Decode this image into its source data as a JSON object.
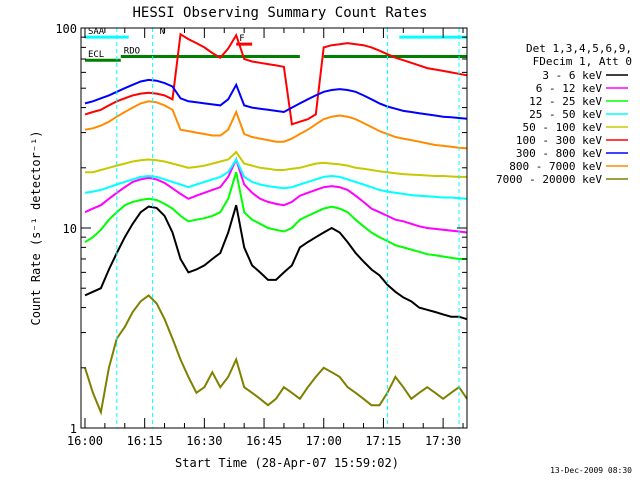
{
  "chart_data": {
    "type": "line",
    "title": "HESSI Observing Summary Count Rates",
    "xlabel": "Start Time (28-Apr-07 15:59:02)",
    "ylabel": "Count Rate (s⁻¹ detector⁻¹)",
    "ylog": true,
    "ylim": [
      1,
      100
    ],
    "xlim_min": [
      0,
      97
    ],
    "xticks": [
      {
        "min": 1,
        "label": "16:00"
      },
      {
        "min": 16,
        "label": "16:15"
      },
      {
        "min": 31,
        "label": "16:30"
      },
      {
        "min": 46,
        "label": "16:45"
      },
      {
        "min": 61,
        "label": "17:00"
      },
      {
        "min": 76,
        "label": "17:15"
      },
      {
        "min": 91,
        "label": "17:30"
      }
    ],
    "yticks": [
      {
        "value": 1,
        "label": "1"
      },
      {
        "value": 10,
        "label": "10"
      },
      {
        "value": 100,
        "label": "100"
      }
    ],
    "legend_position": "right",
    "legend_header": [
      "Det 1,3,4,5,6,9,",
      "FDecim 1, Att 0"
    ],
    "series": [
      {
        "name": "3 - 6 keV",
        "color": "#000000",
        "x": [
          1,
          3,
          5,
          7,
          9,
          11,
          13,
          15,
          17,
          19,
          21,
          23,
          25,
          27,
          29,
          31,
          33,
          35,
          37,
          39,
          41,
          43,
          45,
          47,
          49,
          51,
          53,
          55,
          57,
          59,
          61,
          63,
          65,
          67,
          69,
          71,
          73,
          75,
          77,
          79,
          81,
          83,
          85,
          87,
          89,
          91,
          93,
          95,
          97
        ],
        "y": [
          4.6,
          4.8,
          5.0,
          6.2,
          7.5,
          9.0,
          10.5,
          12.0,
          12.8,
          12.6,
          11.5,
          9.5,
          7.0,
          6.0,
          6.2,
          6.5,
          7.0,
          7.5,
          9.5,
          13,
          8.0,
          6.5,
          6.0,
          5.5,
          5.5,
          6.0,
          6.5,
          8.0,
          8.5,
          9.0,
          9.5,
          10.0,
          9.5,
          8.5,
          7.5,
          6.8,
          6.2,
          5.8,
          5.2,
          4.8,
          4.5,
          4.3,
          4.0,
          3.9,
          3.8,
          3.7,
          3.6,
          3.6,
          3.5
        ]
      },
      {
        "name": "6 - 12 keV",
        "color": "#ff00ff",
        "x": [
          1,
          3,
          5,
          7,
          9,
          11,
          13,
          15,
          17,
          19,
          21,
          23,
          25,
          27,
          29,
          31,
          33,
          35,
          37,
          39,
          41,
          43,
          45,
          47,
          49,
          51,
          53,
          55,
          57,
          59,
          61,
          63,
          65,
          67,
          69,
          71,
          73,
          75,
          77,
          79,
          81,
          83,
          85,
          87,
          89,
          91,
          93,
          95,
          97
        ],
        "y": [
          12.0,
          12.5,
          13.0,
          14.0,
          15.0,
          16.0,
          17.0,
          17.5,
          17.8,
          17.5,
          16.8,
          15.8,
          14.8,
          14.0,
          14.5,
          15.0,
          15.5,
          16.0,
          18.0,
          22,
          16.5,
          15.0,
          14.0,
          13.5,
          13.2,
          13.0,
          13.5,
          14.5,
          15.0,
          15.5,
          16.0,
          16.2,
          16.0,
          15.5,
          14.5,
          13.5,
          12.5,
          12.0,
          11.5,
          11.0,
          10.8,
          10.5,
          10.2,
          10.0,
          9.9,
          9.8,
          9.7,
          9.6,
          9.5
        ]
      },
      {
        "name": "12 - 25 keV",
        "color": "#00ff00",
        "x": [
          1,
          3,
          5,
          7,
          9,
          11,
          13,
          15,
          17,
          19,
          21,
          23,
          25,
          27,
          29,
          31,
          33,
          35,
          37,
          39,
          41,
          43,
          45,
          47,
          49,
          51,
          53,
          55,
          57,
          59,
          61,
          63,
          65,
          67,
          69,
          71,
          73,
          75,
          77,
          79,
          81,
          83,
          85,
          87,
          89,
          91,
          93,
          95,
          97
        ],
        "y": [
          8.5,
          9.0,
          9.8,
          11.0,
          12.0,
          13.0,
          13.5,
          13.8,
          14.0,
          13.8,
          13.2,
          12.5,
          11.5,
          10.8,
          11.0,
          11.2,
          11.5,
          12.0,
          14.0,
          19,
          12.0,
          11.0,
          10.5,
          10.0,
          9.8,
          9.6,
          10.0,
          11.0,
          11.5,
          12.0,
          12.5,
          12.8,
          12.5,
          12.0,
          11.0,
          10.2,
          9.5,
          9.0,
          8.6,
          8.2,
          8.0,
          7.8,
          7.6,
          7.4,
          7.3,
          7.2,
          7.1,
          7.0,
          7.0
        ]
      },
      {
        "name": "25 - 50 keV",
        "color": "#00ffff",
        "x": [
          1,
          3,
          5,
          7,
          9,
          11,
          13,
          15,
          17,
          19,
          21,
          23,
          25,
          27,
          29,
          31,
          33,
          35,
          37,
          39,
          41,
          43,
          45,
          47,
          49,
          51,
          53,
          55,
          57,
          59,
          61,
          63,
          65,
          67,
          69,
          71,
          73,
          75,
          77,
          79,
          81,
          83,
          85,
          87,
          89,
          91,
          93,
          95,
          97
        ],
        "y": [
          15.0,
          15.2,
          15.5,
          16.0,
          16.5,
          17.0,
          17.5,
          18.0,
          18.2,
          18.0,
          17.5,
          17.0,
          16.5,
          16.0,
          16.5,
          17.0,
          17.5,
          18.0,
          19.0,
          22,
          18.0,
          17.0,
          16.5,
          16.2,
          16.0,
          15.8,
          16.0,
          16.5,
          17.0,
          17.5,
          18.0,
          18.2,
          18.0,
          17.5,
          17.0,
          16.5,
          16.0,
          15.5,
          15.2,
          15.0,
          14.8,
          14.6,
          14.5,
          14.4,
          14.3,
          14.2,
          14.2,
          14.1,
          14.0
        ]
      },
      {
        "name": "50 - 100 keV",
        "color": "#c8c800",
        "x": [
          1,
          3,
          5,
          7,
          9,
          11,
          13,
          15,
          17,
          19,
          21,
          23,
          25,
          27,
          29,
          31,
          33,
          35,
          37,
          39,
          41,
          43,
          45,
          47,
          49,
          51,
          53,
          55,
          57,
          59,
          61,
          63,
          65,
          67,
          69,
          71,
          73,
          75,
          77,
          79,
          81,
          83,
          85,
          87,
          89,
          91,
          93,
          95,
          97
        ],
        "y": [
          19.0,
          19.0,
          19.5,
          20.0,
          20.5,
          21.0,
          21.5,
          21.8,
          22.0,
          21.8,
          21.5,
          21.0,
          20.5,
          20.0,
          20.2,
          20.5,
          21.0,
          21.5,
          22.0,
          24,
          21.0,
          20.5,
          20.0,
          19.8,
          19.5,
          19.5,
          19.8,
          20.0,
          20.5,
          21.0,
          21.2,
          21.0,
          20.8,
          20.5,
          20.0,
          19.8,
          19.5,
          19.2,
          19.0,
          18.8,
          18.6,
          18.5,
          18.4,
          18.3,
          18.2,
          18.2,
          18.1,
          18.0,
          18.0
        ]
      },
      {
        "name": "100 - 300 keV",
        "color": "#ff0000",
        "x": [
          1,
          3,
          5,
          7,
          9,
          11,
          13,
          15,
          17,
          19,
          21,
          23,
          25,
          27,
          29,
          31,
          33,
          35,
          37,
          39,
          41,
          43,
          45,
          47,
          49,
          51,
          53,
          55,
          57,
          59,
          61,
          63,
          65,
          67,
          69,
          71,
          73,
          75,
          77,
          79,
          81,
          83,
          85,
          87,
          89,
          91,
          93,
          95,
          97
        ],
        "y": [
          37,
          38,
          39,
          41,
          43,
          44.5,
          46,
          47,
          47.5,
          47,
          46,
          44,
          93,
          88,
          84,
          80,
          75,
          71,
          79,
          92,
          70,
          68,
          67,
          66,
          65,
          64,
          33,
          34,
          35,
          37,
          80,
          82,
          83,
          84,
          83,
          82,
          80,
          77,
          74,
          71,
          69,
          67,
          65,
          63,
          62,
          61,
          60,
          59,
          58
        ]
      },
      {
        "name": "300 - 800 keV",
        "color": "#0000ff",
        "x": [
          1,
          3,
          5,
          7,
          9,
          11,
          13,
          15,
          17,
          19,
          21,
          23,
          25,
          27,
          29,
          31,
          33,
          35,
          37,
          39,
          41,
          43,
          45,
          47,
          49,
          51,
          53,
          55,
          57,
          59,
          61,
          63,
          65,
          67,
          69,
          71,
          73,
          75,
          77,
          79,
          81,
          83,
          85,
          87,
          89,
          91,
          93,
          95,
          97
        ],
        "y": [
          42,
          43,
          44.5,
          46,
          48,
          50,
          52,
          54,
          55,
          54.5,
          53,
          51,
          44.5,
          43,
          42.5,
          42,
          41.5,
          41,
          44,
          52,
          41,
          40,
          39.5,
          39,
          38.5,
          38,
          40,
          42,
          44,
          46,
          48,
          49,
          49.5,
          49,
          48,
          46,
          44,
          42,
          40.5,
          39.5,
          38.5,
          38,
          37.5,
          37,
          36.5,
          36,
          35.8,
          35.5,
          35.2
        ]
      },
      {
        "name": "800 - 7000 keV",
        "color": "#ff8c00",
        "x": [
          1,
          3,
          5,
          7,
          9,
          11,
          13,
          15,
          17,
          19,
          21,
          23,
          25,
          27,
          29,
          31,
          33,
          35,
          37,
          39,
          41,
          43,
          45,
          47,
          49,
          51,
          53,
          55,
          57,
          59,
          61,
          63,
          65,
          67,
          69,
          71,
          73,
          75,
          77,
          79,
          81,
          83,
          85,
          87,
          89,
          91,
          93,
          95,
          97
        ],
        "y": [
          31,
          31.5,
          32.5,
          34,
          36,
          38,
          40,
          42,
          43,
          42.5,
          41,
          39,
          31,
          30.5,
          30,
          29.5,
          29,
          29,
          31,
          38,
          29.5,
          28.5,
          28,
          27.5,
          27,
          27,
          28,
          29.5,
          31,
          33,
          35,
          36,
          36.5,
          36,
          35,
          33.5,
          32,
          30.5,
          29.5,
          28.5,
          28,
          27.5,
          27,
          26.5,
          26,
          25.8,
          25.5,
          25.2,
          25
        ]
      },
      {
        "name": "7000 - 20000 keV",
        "color": "#808000",
        "x": [
          1,
          3,
          5,
          7,
          9,
          11,
          13,
          15,
          17,
          19,
          21,
          23,
          25,
          27,
          29,
          31,
          33,
          35,
          37,
          39,
          41,
          43,
          45,
          47,
          49,
          51,
          53,
          55,
          57,
          59,
          61,
          63,
          65,
          67,
          69,
          71,
          73,
          75,
          77,
          79,
          81,
          83,
          85,
          87,
          89,
          91,
          93,
          95,
          97
        ],
        "y": [
          2.0,
          1.5,
          1.2,
          2.0,
          2.8,
          3.2,
          3.8,
          4.3,
          4.6,
          4.2,
          3.5,
          2.8,
          2.2,
          1.8,
          1.5,
          1.6,
          1.9,
          1.6,
          1.8,
          2.2,
          1.6,
          1.5,
          1.4,
          1.3,
          1.4,
          1.6,
          1.5,
          1.4,
          1.6,
          1.8,
          2.0,
          1.9,
          1.8,
          1.6,
          1.5,
          1.4,
          1.3,
          1.3,
          1.5,
          1.8,
          1.6,
          1.4,
          1.5,
          1.6,
          1.5,
          1.4,
          1.5,
          1.6,
          1.4
        ]
      }
    ],
    "flags": [
      {
        "label": "SAA",
        "color": "#00ffff",
        "segments": [
          [
            1,
            12
          ],
          [
            80,
            97
          ]
        ],
        "value": 90
      },
      {
        "label": "N",
        "color": "#00ffff",
        "segments": [
          [
            19,
            19
          ]
        ],
        "value": 90
      },
      {
        "label": "RDO",
        "color": "#008000",
        "segments": [
          [
            10,
            55
          ],
          [
            61,
            97
          ]
        ],
        "value": 72
      },
      {
        "label": "ECL",
        "color": "#008000",
        "segments": [
          [
            1,
            10
          ]
        ],
        "value": 69
      },
      {
        "label": "F",
        "color": "#ff0000",
        "segments": [
          [
            39,
            43
          ]
        ],
        "value": 83
      }
    ],
    "vlines_min": [
      9,
      18,
      77,
      95
    ],
    "grid": false
  },
  "timestamp": "13-Dec-2009 08:30"
}
